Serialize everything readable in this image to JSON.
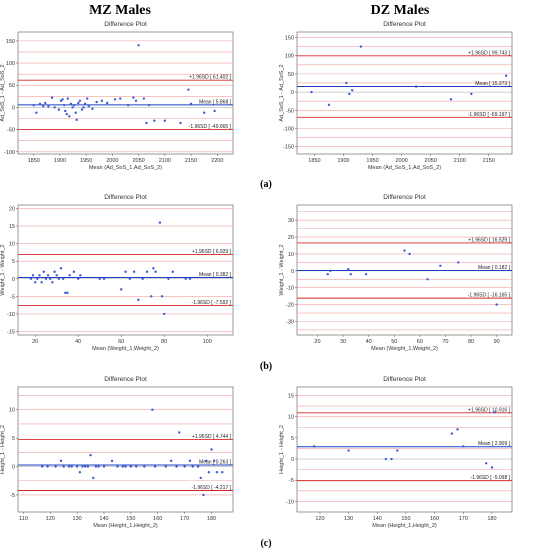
{
  "headers": {
    "left": "MZ Males",
    "right": "DZ Males"
  },
  "subfigure_labels": [
    "(a)",
    "(b)",
    "(c)"
  ],
  "colors": {
    "mean_line": "#1f3fbf",
    "sd_line": "#d62728",
    "grid_line": "#f2a0a0",
    "point": "#3b5bd6"
  },
  "chart_data": [
    {
      "type": "scatter",
      "panel": "a-left",
      "title": "Difference Plot",
      "xlabel": "Mean (Ad_SoS_1,Ad_SoS_2)",
      "ylabel": "Ad_SoS_1 - Ad_SoS_2",
      "xlim": [
        1820,
        2230
      ],
      "ylim": [
        -105,
        170
      ],
      "xticks": [
        1850,
        1900,
        1950,
        2000,
        2050,
        2100,
        2150,
        2200
      ],
      "yticks": [
        -100,
        -50,
        0,
        50,
        100,
        150
      ],
      "grid_lines": [
        -100,
        -75,
        -25,
        25,
        50,
        75,
        100,
        125,
        150
      ],
      "mean": 5.868,
      "upper": 61.402,
      "lower": -49.665,
      "mean_label": "Mean [ 5.868 ]",
      "upper_label": "+1.96SD [ 61.402 ]",
      "lower_label": "-1.96SD [ -49.665 ]",
      "points": [
        [
          1850,
          5
        ],
        [
          1855,
          -12
        ],
        [
          1862,
          8
        ],
        [
          1868,
          3
        ],
        [
          1872,
          10
        ],
        [
          1878,
          2
        ],
        [
          1885,
          22
        ],
        [
          1890,
          0
        ],
        [
          1898,
          -5
        ],
        [
          1902,
          15
        ],
        [
          1905,
          18
        ],
        [
          1908,
          5
        ],
        [
          1910,
          -8
        ],
        [
          1913,
          -15
        ],
        [
          1915,
          20
        ],
        [
          1918,
          -20
        ],
        [
          1921,
          8
        ],
        [
          1924,
          0
        ],
        [
          1927,
          5
        ],
        [
          1930,
          -12
        ],
        [
          1932,
          -28
        ],
        [
          1935,
          10
        ],
        [
          1938,
          15
        ],
        [
          1942,
          -5
        ],
        [
          1945,
          0
        ],
        [
          1948,
          8
        ],
        [
          1952,
          20
        ],
        [
          1955,
          3
        ],
        [
          1962,
          -3
        ],
        [
          1970,
          12
        ],
        [
          1980,
          15
        ],
        [
          1990,
          10
        ],
        [
          2005,
          18
        ],
        [
          2015,
          20
        ],
        [
          2030,
          5
        ],
        [
          2040,
          22
        ],
        [
          2045,
          15
        ],
        [
          2050,
          140
        ],
        [
          2060,
          20
        ],
        [
          2065,
          -35
        ],
        [
          2070,
          5
        ],
        [
          2080,
          -30
        ],
        [
          2100,
          -30
        ],
        [
          2130,
          -35
        ],
        [
          2145,
          40
        ],
        [
          2150,
          8
        ],
        [
          2175,
          -12
        ],
        [
          2195,
          -8
        ]
      ]
    },
    {
      "type": "scatter",
      "panel": "a-right",
      "title": "Difference Plot",
      "xlabel": "Mean (Ad_SoS_1,Ad_SoS_2)",
      "ylabel": "Ad_SoS_1 - Ad_SoS_2",
      "xlim": [
        1820,
        2190
      ],
      "ylim": [
        -170,
        165
      ],
      "xticks": [
        1850,
        1900,
        1950,
        2000,
        2050,
        2100,
        2150
      ],
      "yticks": [
        -150,
        -100,
        -50,
        0,
        50,
        100,
        150
      ],
      "grid_lines": [
        -150,
        -125,
        -100,
        -50,
        -25,
        25,
        50,
        75,
        125,
        150
      ],
      "mean": 15.273,
      "upper": 99.743,
      "lower": -69.197,
      "mean_label": "Mean [ 15.273 ]",
      "upper_label": "+1.96SD [ 99.743 ]",
      "lower_label": "-1.96SD [ -69.197 ]",
      "points": [
        [
          1845,
          0
        ],
        [
          1875,
          -35
        ],
        [
          1905,
          25
        ],
        [
          1910,
          -5
        ],
        [
          1915,
          5
        ],
        [
          1930,
          125
        ],
        [
          2025,
          15
        ],
        [
          2085,
          -20
        ],
        [
          2120,
          -5
        ],
        [
          2180,
          45
        ]
      ]
    },
    {
      "type": "scatter",
      "panel": "b-left",
      "title": "Difference Plot",
      "xlabel": "Mean (Weight_1,Weight_2)",
      "ylabel": "Weight_1 - Weight_2",
      "xlim": [
        12,
        112
      ],
      "ylim": [
        -16,
        21
      ],
      "xticks": [
        20,
        40,
        60,
        80,
        100
      ],
      "yticks": [
        -15,
        -10,
        -5,
        0,
        5,
        10,
        15,
        20
      ],
      "grid_lines": [
        -15,
        -10,
        -5,
        5,
        10,
        15,
        20
      ],
      "mean": 0.382,
      "upper": 6.929,
      "lower": -7.592,
      "mean_label": "Mean [ 0.382 ]",
      "upper_label": "+1.96SD [ 6.929 ]",
      "lower_label": "-1.96SD [ -7.592 ]",
      "points": [
        [
          18,
          0
        ],
        [
          19,
          1
        ],
        [
          20,
          -1
        ],
        [
          21,
          0
        ],
        [
          22,
          1
        ],
        [
          23,
          -1
        ],
        [
          24,
          2
        ],
        [
          25,
          0
        ],
        [
          26,
          1
        ],
        [
          27,
          0
        ],
        [
          28,
          -1
        ],
        [
          29,
          2
        ],
        [
          30,
          1
        ],
        [
          31,
          0
        ],
        [
          32,
          3
        ],
        [
          33,
          0
        ],
        [
          34,
          -4
        ],
        [
          35,
          -4
        ],
        [
          36,
          1
        ],
        [
          38,
          2
        ],
        [
          40,
          0
        ],
        [
          41,
          1
        ],
        [
          50,
          0
        ],
        [
          52,
          0
        ],
        [
          60,
          -3
        ],
        [
          62,
          2
        ],
        [
          64,
          0
        ],
        [
          66,
          2
        ],
        [
          68,
          -6
        ],
        [
          70,
          0
        ],
        [
          72,
          2
        ],
        [
          74,
          -5
        ],
        [
          75,
          3
        ],
        [
          76,
          2
        ],
        [
          78,
          16
        ],
        [
          79,
          -5
        ],
        [
          80,
          -10
        ],
        [
          82,
          0
        ],
        [
          84,
          2
        ],
        [
          90,
          0
        ],
        [
          92,
          0
        ]
      ]
    },
    {
      "type": "scatter",
      "panel": "b-right",
      "title": "Difference Plot",
      "xlabel": "Mean (Weight_1,Weight_2)",
      "ylabel": "Weight_1 - Weight_2",
      "xlim": [
        12,
        96
      ],
      "ylim": [
        -38,
        39
      ],
      "xticks": [
        20,
        30,
        40,
        50,
        60,
        70,
        80,
        90
      ],
      "yticks": [
        -30,
        -20,
        -10,
        0,
        10,
        20,
        30
      ],
      "grid_lines": [
        -35,
        -30,
        -25,
        -20,
        -10,
        -5,
        5,
        10,
        20,
        25,
        30,
        35
      ],
      "mean": 0.182,
      "upper": 16.529,
      "lower": -16.165,
      "mean_label": "Mean [ 0.182 ]",
      "upper_label": "+1.96SD [ 16.529 ]",
      "lower_label": "-1.96SD [ -16.165 ]",
      "points": [
        [
          24,
          -2
        ],
        [
          25,
          0
        ],
        [
          32,
          1
        ],
        [
          33,
          -2
        ],
        [
          39,
          -2
        ],
        [
          54,
          12
        ],
        [
          56,
          10
        ],
        [
          63,
          -5
        ],
        [
          68,
          3
        ],
        [
          75,
          5
        ],
        [
          90,
          -20
        ]
      ]
    },
    {
      "type": "scatter",
      "panel": "c-left",
      "title": "Difference Plot",
      "xlabel": "Mean (Height_1,Height_2)",
      "ylabel": "Height_1 - Height_2",
      "xlim": [
        108,
        188
      ],
      "ylim": [
        -8,
        14
      ],
      "xticks": [
        110,
        120,
        130,
        140,
        150,
        160,
        170,
        180
      ],
      "yticks": [
        -5,
        0,
        5,
        10
      ],
      "grid_lines": [
        -5,
        -2.5,
        2.5,
        7.5,
        10,
        12.5
      ],
      "mean": 0.263,
      "upper": 4.744,
      "lower": -4.217,
      "mean_label": "Mean [ 0.263 ]",
      "upper_label": "+1.96SD [ 4.744 ]",
      "lower_label": "-1.96SD [ -4.217 ]",
      "points": [
        [
          117,
          0
        ],
        [
          119,
          0
        ],
        [
          122,
          0
        ],
        [
          124,
          1
        ],
        [
          125,
          0
        ],
        [
          127,
          0
        ],
        [
          128,
          0
        ],
        [
          130,
          0
        ],
        [
          131,
          -1
        ],
        [
          132,
          0
        ],
        [
          133,
          0
        ],
        [
          134,
          0
        ],
        [
          135,
          2
        ],
        [
          136,
          -2
        ],
        [
          137,
          0
        ],
        [
          138,
          0
        ],
        [
          140,
          0
        ],
        [
          143,
          1
        ],
        [
          145,
          0
        ],
        [
          147,
          0
        ],
        [
          148,
          0
        ],
        [
          150,
          0
        ],
        [
          152,
          0
        ],
        [
          155,
          0
        ],
        [
          158,
          10
        ],
        [
          159,
          0
        ],
        [
          163,
          0
        ],
        [
          165,
          1
        ],
        [
          167,
          0
        ],
        [
          168,
          6
        ],
        [
          170,
          0
        ],
        [
          172,
          1
        ],
        [
          173,
          0
        ],
        [
          175,
          0
        ],
        [
          176,
          -2
        ],
        [
          177,
          -5
        ],
        [
          178,
          1
        ],
        [
          179,
          -1
        ],
        [
          180,
          3
        ],
        [
          181,
          1
        ],
        [
          182,
          -1
        ],
        [
          184,
          -1
        ]
      ]
    },
    {
      "type": "scatter",
      "panel": "c-right",
      "title": "Difference Plot",
      "xlabel": "Mean (Height_1,Height_2)",
      "ylabel": "Height_1 - Height_2",
      "xlim": [
        112,
        187
      ],
      "ylim": [
        -12.5,
        17
      ],
      "xticks": [
        120,
        130,
        140,
        150,
        160,
        170,
        180
      ],
      "yticks": [
        -10,
        -5,
        0,
        5,
        10,
        15
      ],
      "grid_lines": [
        -10,
        -7.5,
        -2.5,
        2.5,
        7.5,
        10,
        12.5,
        15
      ],
      "mean": 2.909,
      "upper": 10.916,
      "lower": -5.098,
      "mean_label": "Mean [ 2.909 ]",
      "upper_label": "+1.96SD [ 10.916 ]",
      "lower_label": "-1.96SD [ -5.098 ]",
      "points": [
        [
          118,
          3
        ],
        [
          130,
          2
        ],
        [
          143,
          0
        ],
        [
          145,
          0
        ],
        [
          147,
          2
        ],
        [
          166,
          6
        ],
        [
          168,
          7
        ],
        [
          170,
          3
        ],
        [
          178,
          -1
        ],
        [
          180,
          -2
        ],
        [
          181,
          11
        ]
      ]
    }
  ]
}
